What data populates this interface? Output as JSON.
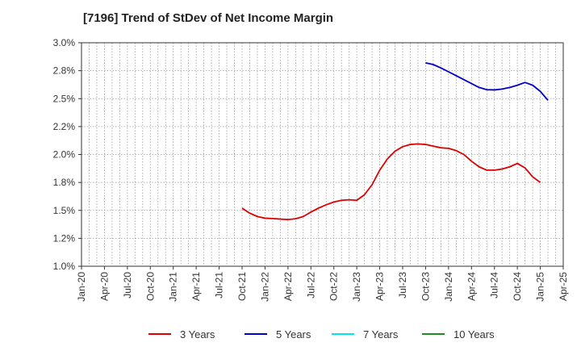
{
  "chart_data": {
    "type": "line",
    "title": "[7196]  Trend of StDev of Net Income Margin",
    "xlabel": "",
    "ylabel": "",
    "x_ticks": [
      "Jan-20",
      "Apr-20",
      "Jul-20",
      "Oct-20",
      "Jan-21",
      "Apr-21",
      "Jul-21",
      "Oct-21",
      "Jan-22",
      "Apr-22",
      "Jul-22",
      "Oct-22",
      "Jan-23",
      "Apr-23",
      "Jul-23",
      "Oct-23",
      "Jan-24",
      "Apr-24",
      "Jul-24",
      "Oct-24",
      "Jan-25",
      "Apr-25"
    ],
    "y_ticks": [
      "1.0%",
      "1.2%",
      "1.5%",
      "1.8%",
      "2.0%",
      "2.2%",
      "2.5%",
      "2.8%",
      "3.0%"
    ],
    "ylim": [
      1.0,
      3.0
    ],
    "grid": true,
    "legend_position": "bottom",
    "series": [
      {
        "name": "3 Years",
        "color": "#dd0000",
        "points": [
          [
            "Oct-21",
            1.52
          ],
          [
            "Nov-21",
            1.475
          ],
          [
            "Dec-21",
            1.445
          ],
          [
            "Jan-22",
            1.43
          ],
          [
            "Feb-22",
            1.427
          ],
          [
            "Mar-22",
            1.422
          ],
          [
            "Apr-22",
            1.418
          ],
          [
            "May-22",
            1.425
          ],
          [
            "Jun-22",
            1.445
          ],
          [
            "Jul-22",
            1.485
          ],
          [
            "Aug-22",
            1.52
          ],
          [
            "Sep-22",
            1.55
          ],
          [
            "Oct-22",
            1.575
          ],
          [
            "Nov-22",
            1.59
          ],
          [
            "Dec-22",
            1.595
          ],
          [
            "Jan-23",
            1.59
          ],
          [
            "Feb-23",
            1.64
          ],
          [
            "Mar-23",
            1.73
          ],
          [
            "Apr-23",
            1.86
          ],
          [
            "May-23",
            1.96
          ],
          [
            "Jun-23",
            2.03
          ],
          [
            "Jul-23",
            2.07
          ],
          [
            "Aug-23",
            2.09
          ],
          [
            "Sep-23",
            2.095
          ],
          [
            "Oct-23",
            2.09
          ],
          [
            "Nov-23",
            2.075
          ],
          [
            "Dec-23",
            2.06
          ],
          [
            "Jan-24",
            2.055
          ],
          [
            "Feb-24",
            2.035
          ],
          [
            "Mar-24",
            2.0
          ],
          [
            "Apr-24",
            1.94
          ],
          [
            "May-24",
            1.89
          ],
          [
            "Jun-24",
            1.86
          ],
          [
            "Jul-24",
            1.86
          ],
          [
            "Aug-24",
            1.87
          ],
          [
            "Sep-24",
            1.89
          ],
          [
            "Oct-24",
            1.92
          ],
          [
            "Nov-24",
            1.88
          ],
          [
            "Dec-24",
            1.8
          ],
          [
            "Jan-25",
            1.75
          ]
        ]
      },
      {
        "name": "5 Years",
        "color": "#0000cc",
        "points": [
          [
            "Oct-23",
            2.82
          ],
          [
            "Nov-23",
            2.805
          ],
          [
            "Dec-23",
            2.775
          ],
          [
            "Jan-24",
            2.74
          ],
          [
            "Feb-24",
            2.705
          ],
          [
            "Mar-24",
            2.67
          ],
          [
            "Apr-24",
            2.635
          ],
          [
            "May-24",
            2.6
          ],
          [
            "Jun-24",
            2.58
          ],
          [
            "Jul-24",
            2.578
          ],
          [
            "Aug-24",
            2.586
          ],
          [
            "Sep-24",
            2.6
          ],
          [
            "Oct-24",
            2.62
          ],
          [
            "Nov-24",
            2.645
          ],
          [
            "Dec-24",
            2.62
          ],
          [
            "Jan-25",
            2.565
          ],
          [
            "Feb-25",
            2.485
          ]
        ]
      },
      {
        "name": "7 Years",
        "color": "#00e5ee",
        "points": []
      },
      {
        "name": "10 Years",
        "color": "#228b22",
        "points": []
      }
    ]
  }
}
